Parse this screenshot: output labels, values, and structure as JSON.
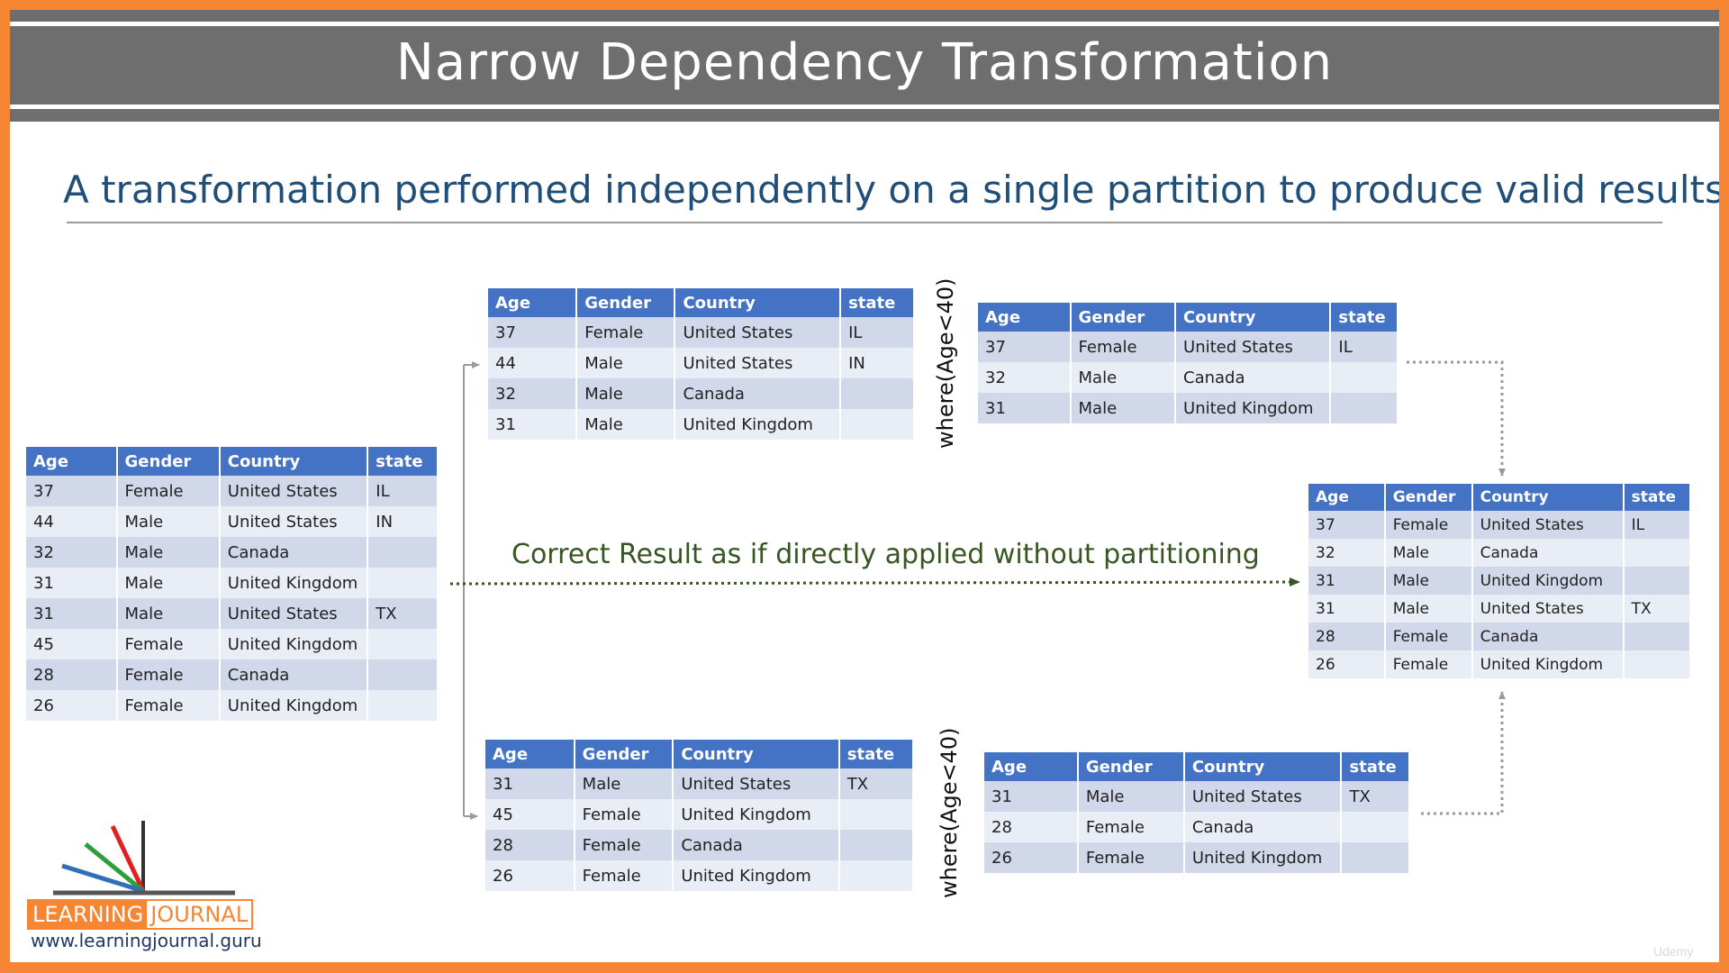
{
  "title": "Narrow Dependency Transformation",
  "subtitle": "A transformation performed independently on a single partition to produce valid results.",
  "headers": [
    "Age",
    "Gender",
    "Country",
    "state"
  ],
  "source_table": [
    [
      "37",
      "Female",
      "United States",
      "IL"
    ],
    [
      "44",
      "Male",
      "United States",
      "IN"
    ],
    [
      "32",
      "Male",
      "Canada",
      ""
    ],
    [
      "31",
      "Male",
      "United Kingdom",
      ""
    ],
    [
      "31",
      "Male",
      "United States",
      "TX"
    ],
    [
      "45",
      "Female",
      "United Kingdom",
      ""
    ],
    [
      "28",
      "Female",
      "Canada",
      ""
    ],
    [
      "26",
      "Female",
      "United Kingdom",
      ""
    ]
  ],
  "partition_1": [
    [
      "37",
      "Female",
      "United States",
      "IL"
    ],
    [
      "44",
      "Male",
      "United States",
      "IN"
    ],
    [
      "32",
      "Male",
      "Canada",
      ""
    ],
    [
      "31",
      "Male",
      "United Kingdom",
      ""
    ]
  ],
  "partition_2": [
    [
      "31",
      "Male",
      "United States",
      "TX"
    ],
    [
      "45",
      "Female",
      "United Kingdom",
      ""
    ],
    [
      "28",
      "Female",
      "Canada",
      ""
    ],
    [
      "26",
      "Female",
      "United Kingdom",
      ""
    ]
  ],
  "filtered_1": [
    [
      "37",
      "Female",
      "United States",
      "IL"
    ],
    [
      "32",
      "Male",
      "Canada",
      ""
    ],
    [
      "31",
      "Male",
      "United Kingdom",
      ""
    ]
  ],
  "filtered_2": [
    [
      "31",
      "Male",
      "United States",
      "TX"
    ],
    [
      "28",
      "Female",
      "Canada",
      ""
    ],
    [
      "26",
      "Female",
      "United Kingdom",
      ""
    ]
  ],
  "result_table": [
    [
      "37",
      "Female",
      "United States",
      "IL"
    ],
    [
      "32",
      "Male",
      "Canada",
      ""
    ],
    [
      "31",
      "Male",
      "United Kingdom",
      ""
    ],
    [
      "31",
      "Male",
      "United States",
      "TX"
    ],
    [
      "28",
      "Female",
      "Canada",
      ""
    ],
    [
      "26",
      "Female",
      "United Kingdom",
      ""
    ]
  ],
  "filter_label": "where(Age<40)",
  "result_label": "Correct Result as if directly applied without partitioning",
  "logo": {
    "part1": "LEARNING",
    "part2": "JOURNAL",
    "url": "www.learningjournal.guru",
    "colors": [
      "#f68634",
      "#1f3864"
    ]
  },
  "watermark": "Udemy",
  "colors": {
    "frame": "#f68634",
    "title_band": "#6e6e6e",
    "header_fill": "#4472c4",
    "row_odd": "#d0d8ea",
    "row_even": "#e9edf5",
    "subtitle": "#1f4e79",
    "result_label": "#375623"
  }
}
